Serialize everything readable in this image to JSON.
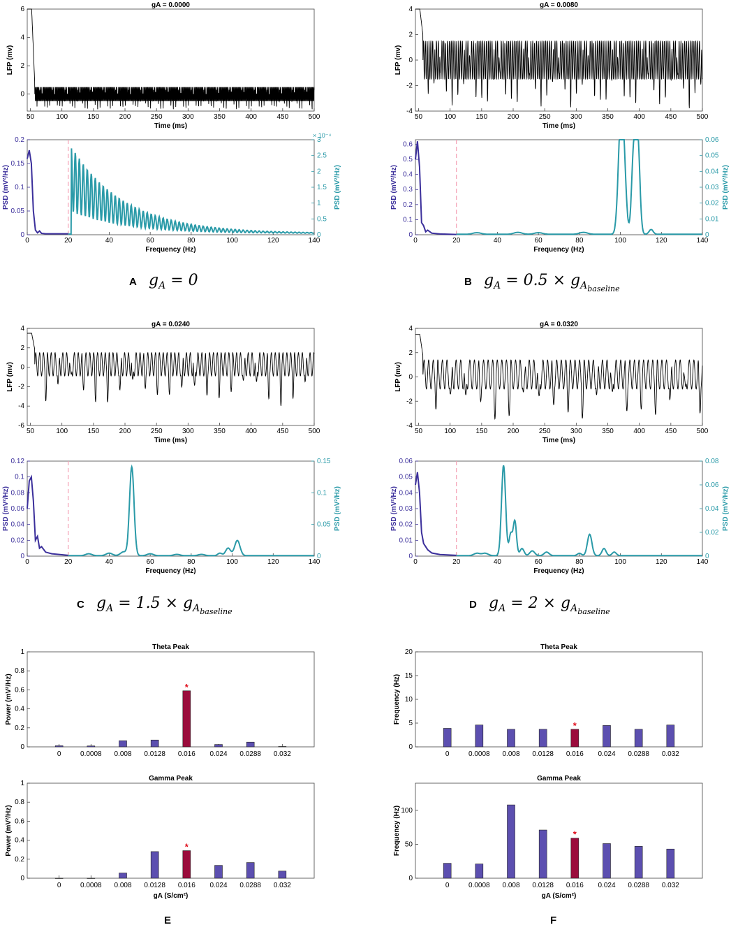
{
  "figure": {
    "colors": {
      "lfp": "#000000",
      "psd_low": "#3b2f9b",
      "psd_high": "#2a9aa8",
      "cutoff": "#f4a0b4",
      "bar": "#5c4fb0",
      "bar_hl": "#9b0c3c",
      "star": "#e0101e"
    }
  },
  "panel_labels": [
    {
      "letter": "A",
      "formula": "g",
      "sub": "A",
      "rest": " = 0",
      "sub2": ""
    },
    {
      "letter": "B",
      "formula": "g",
      "sub": "A",
      "rest": " = 0.5 × g",
      "sub2": "A",
      "sub3": "baseline"
    },
    {
      "letter": "C",
      "formula": "g",
      "sub": "A",
      "rest": " = 1.5 × g",
      "sub2": "A",
      "sub3": "baseline"
    },
    {
      "letter": "D",
      "formula": "g",
      "sub": "A",
      "rest": " = 2 × g",
      "sub2": "A",
      "sub3": "baseline"
    },
    {
      "letter": "E"
    },
    {
      "letter": "F"
    }
  ],
  "chart_data": [
    {
      "id": "lfp_A",
      "type": "line",
      "title": "gA = 0.0000",
      "xlabel": "Time (ms)",
      "ylabel": "LFP (mv)",
      "xlim": [
        45,
        500
      ],
      "ylim": [
        -1.2,
        6
      ],
      "xticks": [
        50,
        100,
        150,
        200,
        250,
        300,
        350,
        400,
        450,
        500
      ],
      "yticks": [
        0,
        2,
        4,
        6
      ],
      "ytick_labels": [
        "0",
        "2",
        "4",
        "6"
      ],
      "signal": {
        "hold": 6,
        "hold_until": 52,
        "osc_start": 57,
        "period": 4.0,
        "center": 0.0,
        "amp": 0.65,
        "trough_amp": 0.65,
        "slow_period": 0,
        "slow_amp": 0
      }
    },
    {
      "id": "lfp_B",
      "type": "line",
      "title": "gA = 0.0080",
      "xlabel": "Time (ms)",
      "ylabel": "LFP (mv)",
      "xlim": [
        45,
        500
      ],
      "ylim": [
        -4,
        4
      ],
      "xticks": [
        50,
        100,
        150,
        200,
        250,
        300,
        350,
        400,
        450,
        500
      ],
      "yticks": [
        -4,
        -2,
        0,
        2,
        4
      ],
      "ytick_labels": [
        "-4",
        "-2",
        "0",
        "2",
        "4"
      ],
      "signal": {
        "hold": 4,
        "hold_until": 52,
        "osc_start": 57,
        "period": 9.4,
        "center": 0.0,
        "amp": 1.9,
        "trough_amp": 2.3,
        "slow_period": 0,
        "slow_amp": 0
      }
    },
    {
      "id": "lfp_C",
      "type": "line",
      "title": "gA = 0.0240",
      "xlabel": "Time (ms)",
      "ylabel": "LFP (mv)",
      "xlim": [
        45,
        500
      ],
      "ylim": [
        -6,
        4
      ],
      "xticks": [
        50,
        100,
        150,
        200,
        250,
        300,
        350,
        400,
        450,
        500
      ],
      "yticks": [
        -6,
        -4,
        -2,
        0,
        2,
        4
      ],
      "ytick_labels": [
        "-6",
        "-4",
        "-2",
        "0",
        "2",
        "4"
      ],
      "signal": {
        "hold": 3.5,
        "hold_until": 52,
        "osc_start": 57,
        "period": 19.6,
        "center": 0.3,
        "amp": 1.5,
        "trough_amp": 3.2,
        "slow_period": 0,
        "slow_amp": 0
      }
    },
    {
      "id": "lfp_D",
      "type": "line",
      "title": "gA = 0.0320",
      "xlabel": "Time (ms)",
      "ylabel": "LFP (mv)",
      "xlim": [
        45,
        500
      ],
      "ylim": [
        -4,
        4
      ],
      "xticks": [
        50,
        100,
        150,
        200,
        250,
        300,
        350,
        400,
        450,
        500
      ],
      "yticks": [
        -4,
        -2,
        0,
        2,
        4
      ],
      "ytick_labels": [
        "-4",
        "-2",
        "0",
        "2",
        "4"
      ],
      "signal": {
        "hold": 3.5,
        "hold_until": 52,
        "osc_start": 57,
        "period": 23.2,
        "center": 0.2,
        "amp": 1.5,
        "trough_amp": 2.8,
        "slow_period": 0,
        "slow_amp": 0
      }
    },
    {
      "id": "psd_A",
      "type": "line",
      "xlabel": "Frequency (Hz)",
      "ylabel_left": "PSD (mV²/Hz)",
      "ylabel_right": "PSD (mV²/Hz)",
      "xlim": [
        0,
        140
      ],
      "cutoff": 20,
      "xticks": [
        0,
        20,
        40,
        60,
        80,
        100,
        120,
        140
      ],
      "left": {
        "ylim": [
          0,
          0.2
        ],
        "yticks": [
          0,
          0.05,
          0.1,
          0.15,
          0.2
        ],
        "ytick_labels": [
          "0",
          "0.05",
          "0.1",
          "0.15",
          "0.2"
        ],
        "points": [
          [
            0,
            0.16
          ],
          [
            1,
            0.178
          ],
          [
            2,
            0.15
          ],
          [
            3,
            0.05
          ],
          [
            4,
            0.01
          ],
          [
            5,
            0.004
          ],
          [
            6,
            0.008
          ],
          [
            7,
            0.003
          ],
          [
            9,
            0.002
          ],
          [
            12,
            0.002
          ],
          [
            20,
            0.002
          ]
        ]
      },
      "right": {
        "ylim": [
          0,
          3.0
        ],
        "yticks": [
          0,
          0.5,
          1,
          1.5,
          2,
          2.5,
          3
        ],
        "ytick_labels": [
          "0",
          "0.5",
          "1",
          "1.5",
          "2",
          "2.5",
          "3"
        ],
        "exponent": "× 10⁻⁴",
        "decay": {
          "start": 21.5,
          "amp": 2.75,
          "tau": 26,
          "spacing": 1.95,
          "floor": 0.04
        }
      }
    },
    {
      "id": "psd_B",
      "type": "line",
      "xlabel": "Frequency (Hz)",
      "ylabel_left": "PSD (mV²/Hz)",
      "ylabel_right": "PSD (mV²/Hz)",
      "xlim": [
        0,
        140
      ],
      "cutoff": 20,
      "xticks": [
        0,
        20,
        40,
        60,
        80,
        100,
        120,
        140
      ],
      "left": {
        "ylim": [
          0,
          0.63
        ],
        "yticks": [
          0,
          0.1,
          0.2,
          0.3,
          0.4,
          0.5,
          0.6
        ],
        "ytick_labels": [
          "0",
          "0.1",
          "0.2",
          "0.3",
          "0.4",
          "0.5",
          "0.6"
        ],
        "points": [
          [
            0,
            0.5
          ],
          [
            1,
            0.62
          ],
          [
            2,
            0.45
          ],
          [
            3,
            0.08
          ],
          [
            4,
            0.06
          ],
          [
            5,
            0.02
          ],
          [
            6,
            0.03
          ],
          [
            8,
            0.01
          ],
          [
            12,
            0.005
          ],
          [
            20,
            0.002
          ]
        ]
      },
      "right": {
        "ylim": [
          0,
          0.06
        ],
        "yticks": [
          0,
          0.01,
          0.02,
          0.03,
          0.04,
          0.05,
          0.06
        ],
        "ytick_labels": [
          "0",
          "0.01",
          "0.02",
          "0.03",
          "0.04",
          "0.05",
          "0.06"
        ],
        "peaks": [
          [
            100,
            0.056,
            1.2
          ],
          [
            101.5,
            0.045,
            1.2
          ],
          [
            106.5,
            0.052,
            1.0
          ],
          [
            108.5,
            0.058,
            1.0
          ],
          [
            115,
            0.003,
            1.0
          ],
          [
            50,
            0.0012,
            2
          ],
          [
            60,
            0.001,
            2
          ],
          [
            82,
            0.0012,
            2
          ],
          [
            30,
            0.001,
            2
          ]
        ]
      }
    },
    {
      "id": "psd_C",
      "type": "line",
      "xlabel": "Frequency (Hz)",
      "ylabel_left": "PSD (mV²/Hz)",
      "ylabel_right": "PSD (mV²/Hz)",
      "xlim": [
        0,
        140
      ],
      "cutoff": 20,
      "xticks": [
        0,
        20,
        40,
        60,
        80,
        100,
        120,
        140
      ],
      "left": {
        "ylim": [
          0,
          0.12
        ],
        "yticks": [
          0,
          0.02,
          0.04,
          0.06,
          0.08,
          0.1,
          0.12
        ],
        "ytick_labels": [
          "0",
          "0.02",
          "0.04",
          "0.06",
          "0.08",
          "0.1",
          "0.12"
        ],
        "points": [
          [
            0,
            0.06
          ],
          [
            1,
            0.095
          ],
          [
            2,
            0.1
          ],
          [
            3,
            0.07
          ],
          [
            4,
            0.02
          ],
          [
            5,
            0.025
          ],
          [
            6,
            0.01
          ],
          [
            7,
            0.012
          ],
          [
            9,
            0.005
          ],
          [
            12,
            0.003
          ],
          [
            20,
            0.001
          ]
        ]
      },
      "right": {
        "ylim": [
          0,
          0.15
        ],
        "yticks": [
          0,
          0.05,
          0.1,
          0.15
        ],
        "ytick_labels": [
          "0",
          "0.05",
          "0.1",
          "0.15"
        ],
        "peaks": [
          [
            51,
            0.14,
            1.1
          ],
          [
            98,
            0.012,
            1.2
          ],
          [
            102.5,
            0.024,
            1.3
          ],
          [
            94,
            0.004,
            1
          ],
          [
            40,
            0.004,
            1.5
          ],
          [
            47,
            0.006,
            1.5
          ],
          [
            30,
            0.003,
            1.5
          ],
          [
            60,
            0.003,
            1.5
          ],
          [
            73,
            0.002,
            1.5
          ],
          [
            85,
            0.002,
            1.5
          ]
        ]
      }
    },
    {
      "id": "psd_D",
      "type": "line",
      "xlabel": "Frequency (Hz)",
      "ylabel_left": "PSD (mV²/Hz)",
      "ylabel_right": "PSD (mV²/Hz)",
      "xlim": [
        0,
        140
      ],
      "cutoff": 20,
      "xticks": [
        0,
        20,
        40,
        60,
        80,
        100,
        120,
        140
      ],
      "left": {
        "ylim": [
          0,
          0.06
        ],
        "yticks": [
          0,
          0.01,
          0.02,
          0.03,
          0.04,
          0.05,
          0.06
        ],
        "ytick_labels": [
          "0",
          "0.01",
          "0.02",
          "0.03",
          "0.04",
          "0.05",
          "0.06"
        ],
        "points": [
          [
            0,
            0.045
          ],
          [
            1,
            0.053
          ],
          [
            2,
            0.04
          ],
          [
            3,
            0.015
          ],
          [
            4,
            0.008
          ],
          [
            5,
            0.006
          ],
          [
            6,
            0.004
          ],
          [
            8,
            0.002
          ],
          [
            12,
            0.001
          ],
          [
            20,
            0.0005
          ]
        ]
      },
      "right": {
        "ylim": [
          0,
          0.08
        ],
        "yticks": [
          0,
          0.02,
          0.04,
          0.06,
          0.08
        ],
        "ytick_labels": [
          "0",
          "0.02",
          "0.04",
          "0.06",
          "0.08"
        ],
        "peaks": [
          [
            43,
            0.076,
            1.0
          ],
          [
            46.5,
            0.018,
            0.8
          ],
          [
            48.5,
            0.029,
            0.8
          ],
          [
            52,
            0.006,
            1
          ],
          [
            57,
            0.004,
            1.2
          ],
          [
            64,
            0.003,
            1.2
          ],
          [
            85,
            0.018,
            1.1
          ],
          [
            92,
            0.006,
            1
          ],
          [
            97,
            0.003,
            1
          ],
          [
            80,
            0.002,
            1
          ],
          [
            30,
            0.002,
            1.5
          ],
          [
            34,
            0.002,
            1.5
          ]
        ]
      }
    },
    {
      "id": "E_theta",
      "type": "bar",
      "title": "Theta Peak",
      "ylabel": "Power (mV²/Hz)",
      "xlabel": "",
      "categories": [
        "0",
        "0.0008",
        "0.008",
        "0.0128",
        "0.016",
        "0.024",
        "0.0288",
        "0.032"
      ],
      "values": [
        0.012,
        0.01,
        0.065,
        0.072,
        0.59,
        0.025,
        0.05,
        0.004
      ],
      "highlight": 4,
      "star": "*",
      "ylim": [
        0,
        1
      ],
      "yticks": [
        0,
        0.2,
        0.4,
        0.6,
        0.8,
        1
      ],
      "ytick_labels": [
        "0",
        "0.2",
        "0.4",
        "0.6",
        "0.8",
        "1"
      ]
    },
    {
      "id": "E_gamma",
      "type": "bar",
      "title": "Gamma Peak",
      "ylabel": "Power (mV²/Hz)",
      "xlabel": "gA (S/cm²)",
      "categories": [
        "0",
        "0.0008",
        "0.008",
        "0.0128",
        "0.016",
        "0.024",
        "0.0288",
        "0.032"
      ],
      "values": [
        0,
        0,
        0.055,
        0.28,
        0.29,
        0.135,
        0.165,
        0.075
      ],
      "highlight": 4,
      "star": "*",
      "ylim": [
        0,
        1
      ],
      "yticks": [
        0,
        0.2,
        0.4,
        0.6,
        0.8,
        1
      ],
      "ytick_labels": [
        "0",
        "0.2",
        "0.4",
        "0.6",
        "0.8",
        "1"
      ]
    },
    {
      "id": "F_theta",
      "type": "bar",
      "title": "Theta Peak",
      "ylabel": "Frequency (Hz)",
      "xlabel": "",
      "categories": [
        "0",
        "0.0008",
        "0.008",
        "0.0128",
        "0.016",
        "0.024",
        "0.0288",
        "0.032"
      ],
      "values": [
        3.9,
        4.6,
        3.7,
        3.7,
        3.7,
        4.5,
        3.7,
        4.6
      ],
      "highlight": 4,
      "star": "*",
      "ylim": [
        0,
        20
      ],
      "yticks": [
        0,
        5,
        10,
        15,
        20
      ],
      "ytick_labels": [
        "0",
        "5",
        "10",
        "15",
        "20"
      ]
    },
    {
      "id": "F_gamma",
      "type": "bar",
      "title": "Gamma Peak",
      "ylabel": "Frequency (Hz)",
      "xlabel": "gA (S/cm²)",
      "categories": [
        "0",
        "0.0008",
        "0.008",
        "0.0128",
        "0.016",
        "0.024",
        "0.0288",
        "0.032"
      ],
      "values": [
        22,
        21,
        108,
        71,
        59,
        51,
        47,
        43
      ],
      "highlight": 4,
      "star": "*",
      "ylim": [
        0,
        140
      ],
      "yticks": [
        0,
        50,
        100
      ],
      "ytick_labels": [
        "0",
        "50",
        "100"
      ]
    }
  ]
}
